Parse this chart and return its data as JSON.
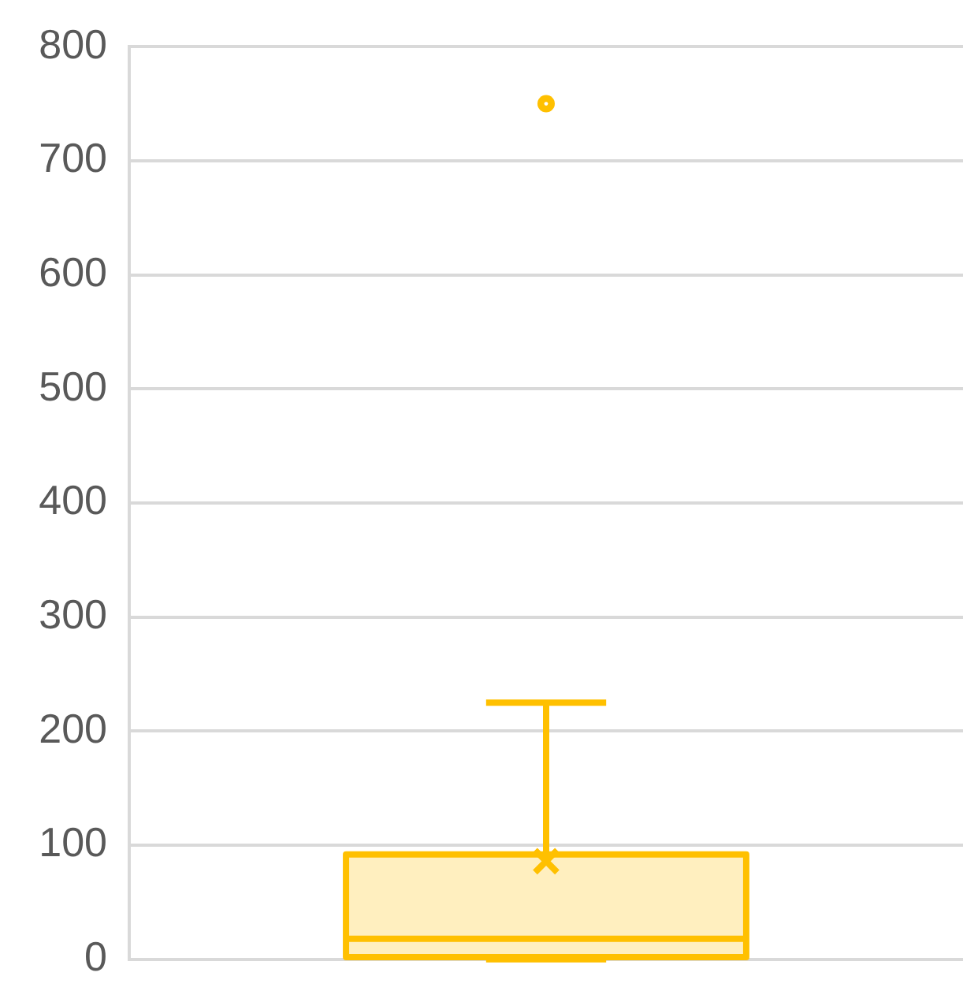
{
  "chart_data": {
    "type": "box",
    "categories": [
      null
    ],
    "series": [
      {
        "color": "#ffc000",
        "boxes": [
          {
            "low": 0,
            "q1": 2,
            "median": 18,
            "q3": 92,
            "high": 225,
            "mean": 86,
            "outliers": [
              750
            ]
          }
        ]
      }
    ],
    "ylim": [
      0,
      800
    ],
    "yticks": [
      0,
      100,
      200,
      300,
      400,
      500,
      600,
      700,
      800
    ],
    "grid": "y"
  }
}
